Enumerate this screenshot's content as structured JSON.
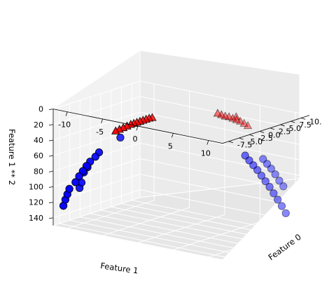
{
  "chart_data": {
    "type": "scatter3d",
    "title": "",
    "axes": {
      "x": {
        "label": "Feature 0",
        "ticks": [
          "-7.5",
          "-5.0",
          "-2.5",
          "0.0",
          "2.5",
          "5.0",
          "7.5",
          "10.0"
        ]
      },
      "y": {
        "label": "Feature 1",
        "ticks": [
          "-10",
          "-5",
          "0",
          "5",
          "10"
        ]
      },
      "z": {
        "label": "Feature 1 ** 2",
        "ticks": [
          "0",
          "20",
          "40",
          "60",
          "80",
          "100",
          "120",
          "140"
        ],
        "inverted": true
      }
    },
    "grid": true,
    "series": [
      {
        "marker": "triangle",
        "color": "#ff0000",
        "points_note": "class 1 clusters",
        "points": [
          [
            -7.2,
            -4.2,
            17
          ],
          [
            -6.8,
            -3.9,
            15
          ],
          [
            -6.4,
            -3.6,
            13
          ],
          [
            -6.0,
            -3.3,
            11
          ],
          [
            -5.6,
            -3.0,
            9
          ],
          [
            -5.2,
            -2.8,
            8
          ],
          [
            -4.8,
            -2.6,
            7
          ],
          [
            -4.4,
            -2.4,
            6
          ],
          [
            -4.0,
            -2.2,
            5
          ],
          [
            -3.6,
            -2.0,
            4
          ],
          [
            -3.2,
            -1.8,
            3
          ],
          [
            -2.8,
            -1.6,
            2.5
          ],
          [
            7.0,
            3.0,
            9
          ],
          [
            7.4,
            3.3,
            10
          ],
          [
            7.8,
            3.6,
            12
          ],
          [
            8.2,
            3.9,
            14
          ],
          [
            8.6,
            4.2,
            16
          ],
          [
            9.0,
            4.5,
            19
          ],
          [
            9.4,
            4.8,
            22
          ],
          [
            6.6,
            2.7,
            7
          ],
          [
            6.2,
            2.4,
            5
          ],
          [
            8.8,
            3.5,
            12
          ]
        ]
      },
      {
        "marker": "circle",
        "color": "#0000ff",
        "points_note": "class 0 clusters",
        "points": [
          [
            -8.5,
            -10.0,
            100
          ],
          [
            -8.3,
            -10.4,
            108
          ],
          [
            -8.1,
            -10.8,
            116
          ],
          [
            -7.9,
            -11.2,
            125
          ],
          [
            -7.7,
            -9.6,
            92
          ],
          [
            -7.5,
            -9.2,
            84
          ],
          [
            -7.3,
            -8.8,
            77
          ],
          [
            -7.1,
            -8.4,
            70
          ],
          [
            -6.9,
            -8.0,
            64
          ],
          [
            -6.7,
            -9.0,
            80
          ],
          [
            -6.5,
            -8.6,
            73
          ],
          [
            -6.3,
            -7.6,
            58
          ],
          [
            -6.1,
            -7.2,
            52
          ],
          [
            -5.9,
            -9.8,
            96
          ],
          [
            -5.7,
            -10.2,
            104
          ],
          [
            -3.0,
            -6.0,
            36
          ],
          [
            5.0,
            7.0,
            49
          ],
          [
            5.3,
            7.4,
            55
          ],
          [
            5.6,
            7.8,
            61
          ],
          [
            5.9,
            8.2,
            67
          ],
          [
            6.2,
            8.6,
            74
          ],
          [
            6.5,
            9.0,
            81
          ],
          [
            6.8,
            9.4,
            88
          ],
          [
            7.1,
            9.8,
            96
          ],
          [
            7.4,
            10.2,
            104
          ],
          [
            7.7,
            10.6,
            112
          ],
          [
            8.0,
            11.0,
            121
          ],
          [
            8.3,
            7.6,
            58
          ],
          [
            8.6,
            8.0,
            64
          ],
          [
            8.9,
            8.4,
            70
          ],
          [
            9.2,
            8.8,
            77
          ],
          [
            9.5,
            9.2,
            85
          ],
          [
            9.8,
            9.6,
            92
          ]
        ]
      }
    ]
  }
}
